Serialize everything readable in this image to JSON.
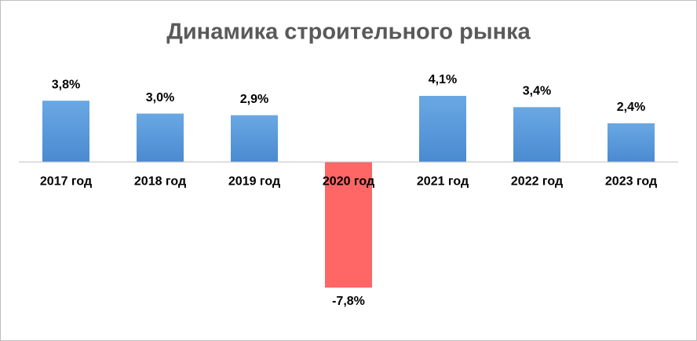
{
  "chart_data": {
    "type": "bar",
    "title": "Динамика строительного рынка",
    "categories": [
      "2017 год",
      "2018 год",
      "2019 год",
      "2020 год",
      "2021 год",
      "2022 год",
      "2023 год"
    ],
    "values": [
      3.8,
      3.0,
      2.9,
      -7.8,
      4.1,
      3.4,
      2.4
    ],
    "value_labels": [
      "3,8%",
      "3,0%",
      "2,9%",
      "-7,8%",
      "4,1%",
      "3,4%",
      "2,4%"
    ],
    "colors": [
      "#5b9bd5",
      "#5b9bd5",
      "#5b9bd5",
      "#ff6666",
      "#5b9bd5",
      "#5b9bd5",
      "#5b9bd5"
    ]
  }
}
